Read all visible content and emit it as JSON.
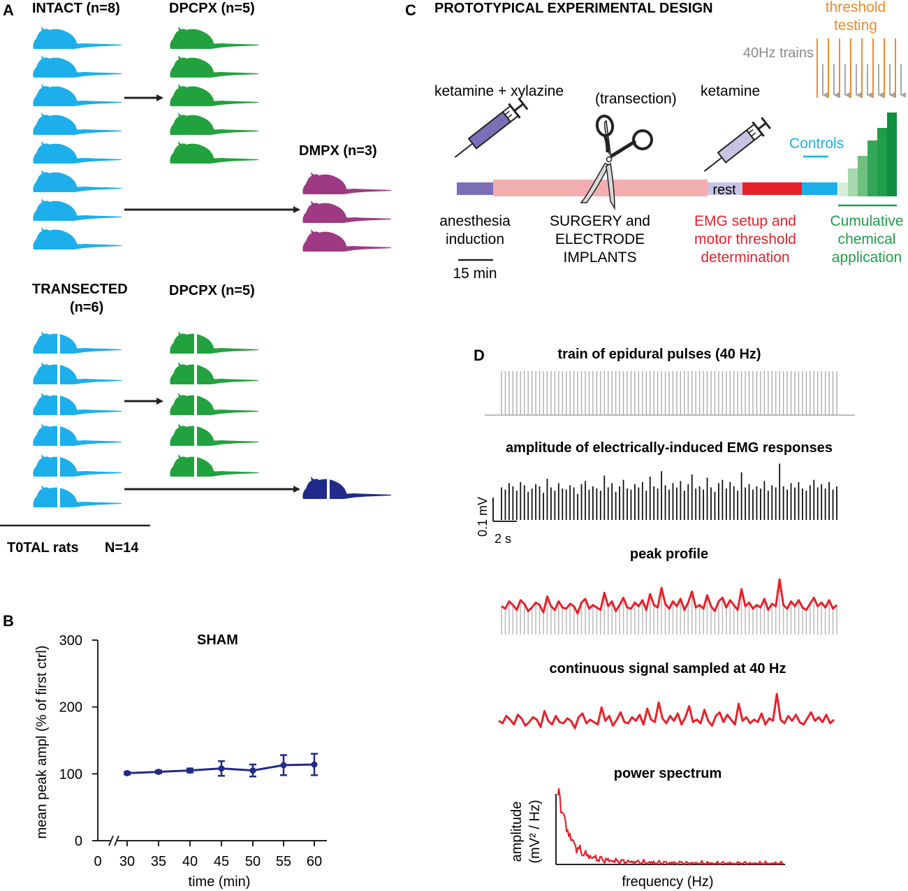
{
  "colors": {
    "intact": "#1CAFEB",
    "dpcpx": "#21A23E",
    "dmpx": "#9E3A84",
    "sham": "#1F2A8A",
    "surgery": "#F3AFAF",
    "induction": "#7B6FB8",
    "rest": "#C9C3E3",
    "emg": "#E8202A",
    "controls": "#1CAFEB",
    "trains": "#A6A6A6",
    "threshold": "#F08A2C",
    "cumulative": "#1E9E4A",
    "trace": "#E8202A"
  },
  "panel_a": {
    "letter": "A",
    "intact_label": "INTACT (n=8)",
    "dpcpx_label_top": "DPCPX (n=5)",
    "dmpx_label": "DMPX (n=3)",
    "transected_label_line1": "TRANSECTED",
    "transected_label_line2": "(n=6)",
    "dpcpx_label_bottom": "DPCPX (n=5)",
    "total_label": "T0TAL rats",
    "total_value": "N=14"
  },
  "panel_b": {
    "letter": "B",
    "title": "SHAM",
    "ylabel": "mean peak ampl (% of first ctrl)",
    "xlabel": "time (min)",
    "y_ticks": [
      "0",
      "100",
      "200",
      "300"
    ],
    "x_ticks": [
      "0",
      "30",
      "35",
      "40",
      "45",
      "50",
      "55",
      "60"
    ]
  },
  "panel_c": {
    "letter": "C",
    "title": "PROTOTYPICAL EXPERIMENTAL DESIGN",
    "threshold_line1": "threshold",
    "threshold_line2": "testing",
    "trains_label": "40Hz trains",
    "ketamine_xylazine": "ketamine + xylazine",
    "transection": "(transection)",
    "ketamine": "ketamine",
    "controls": "Controls",
    "rest": "rest",
    "anesthesia_line1": "anesthesia",
    "anesthesia_line2": "induction",
    "scale": "15 min",
    "surgery_line1": "SURGERY and",
    "surgery_line2": "ELECTRODE",
    "surgery_line3": "IMPLANTS",
    "emg_line1": "EMG setup and",
    "emg_line2": "motor threshold",
    "emg_line3": "determination",
    "cumulative_line1": "Cumulative",
    "cumulative_line2": "chemical",
    "cumulative_line3": "application"
  },
  "panel_d": {
    "letter": "D",
    "train_title": "train of epidural pulses (40 Hz)",
    "amplitude_title": "amplitude of electrically-induced EMG responses",
    "scale_v": "0.1 mV",
    "scale_t": "2 s",
    "peak_title": "peak profile",
    "continuous_title": "continuous signal sampled at 40 Hz",
    "power_title": "power spectrum",
    "power_ylabel_line1": "amplitude",
    "power_ylabel_line2": "(mV² / Hz)",
    "power_xlabel": "frequency (Hz)"
  },
  "chart_data": {
    "type": "line",
    "title": "SHAM",
    "xlabel": "time (min)",
    "ylabel": "mean peak ampl (% of first ctrl)",
    "x": [
      30,
      35,
      40,
      45,
      50,
      55,
      60
    ],
    "series": [
      {
        "name": "SHAM",
        "values": [
          101,
          103,
          105,
          108,
          105,
          113,
          114
        ],
        "errors": [
          2,
          2,
          3,
          11,
          9,
          15,
          16
        ]
      }
    ],
    "xlim": [
      0,
      65
    ],
    "ylim": [
      0,
      300
    ],
    "grid": false
  },
  "emg_amplitudes": [
    30,
    28,
    34,
    31,
    27,
    35,
    32,
    26,
    29,
    33,
    31,
    25,
    38,
    30,
    27,
    34,
    29,
    28,
    32,
    30,
    24,
    33,
    36,
    28,
    31,
    29,
    27,
    41,
    30,
    34,
    26,
    31,
    37,
    29,
    28,
    33,
    30,
    35,
    27,
    40,
    31,
    29,
    45,
    32,
    28,
    34,
    30,
    36,
    27,
    33,
    42,
    29,
    31,
    28,
    39,
    30,
    26,
    34,
    37,
    29,
    35,
    31,
    27,
    44,
    30,
    33,
    28,
    31,
    29,
    36,
    27,
    32,
    30,
    52,
    31,
    28,
    34,
    30,
    35,
    29,
    27,
    32,
    37,
    30,
    33,
    29,
    35,
    28,
    31
  ]
}
